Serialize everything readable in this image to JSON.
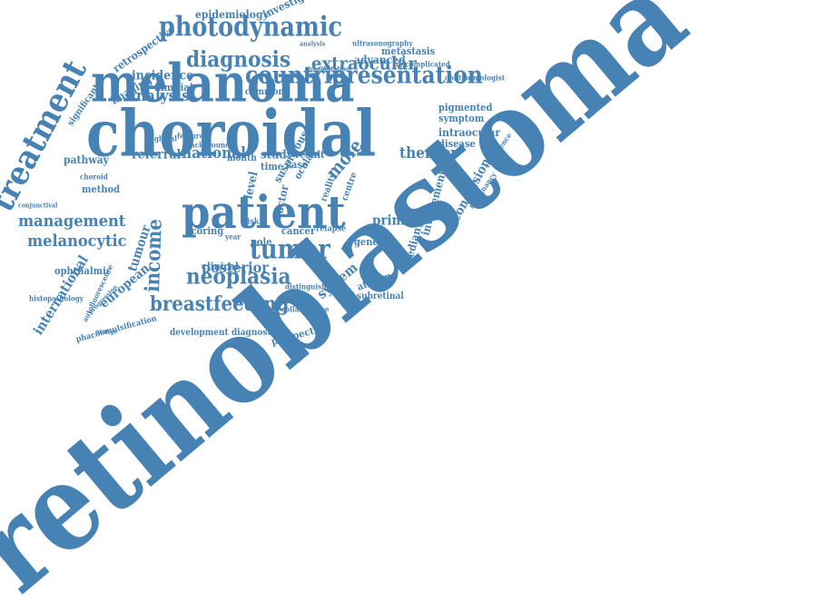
{
  "colors": {
    "word": "#4682b4",
    "background": "#ffffff"
  },
  "words": [
    "retinoblastoma",
    "choroidal",
    "melanoma",
    "patient",
    "treatment",
    "photodynamic",
    "countrie",
    "presentation",
    "diagnosis",
    "extraocular",
    "tumor",
    "neoplasia",
    "breastfeeding",
    "management",
    "melanocytic",
    "income",
    "tumour",
    "international",
    "european",
    "analysis",
    "national",
    "referral",
    "therapy",
    "mole",
    "system",
    "primary",
    "posterior",
    "incidence",
    "imaging",
    "familial",
    "pathway",
    "method",
    "epidemiology",
    "investigation",
    "retrospective",
    "advanced",
    "metastasis",
    "uncomplicated",
    "ultrasonography",
    "ophthalmologist",
    "pigmented",
    "symptom",
    "intraocular",
    "disease",
    "conclusion",
    "involvement",
    "median",
    "genetic",
    "cancer",
    "african",
    "subretinal",
    "prospective",
    "diagnostic",
    "development",
    "phacoemulsification",
    "autofluorescence",
    "ophthalmic",
    "histopathology",
    "choroid",
    "conjunctival",
    "study",
    "result",
    "case",
    "time",
    "month",
    "ocular",
    "clinical",
    "scoring",
    "pole",
    "level",
    "factor",
    "risk",
    "relapse",
    "significant",
    "common",
    "analysis",
    "implantation",
    "malignancy",
    "recurrence",
    "collaborative",
    "distinguishing",
    "background",
    "global",
    "feature",
    "orange",
    "progression",
    "suspicious",
    "year",
    "centre",
    "reality",
    "virtual"
  ]
}
